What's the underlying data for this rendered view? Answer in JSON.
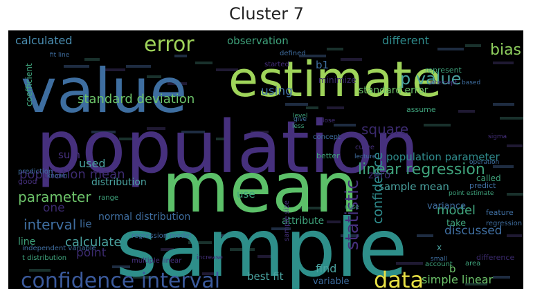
{
  "title": "Cluster 7",
  "colors": {
    "background": "#000000",
    "purple_dark": "#3b2a6e",
    "purple": "#46307d",
    "blue": "#3e6ea0",
    "teal": "#2e8f8a",
    "green": "#4cae6d",
    "lime": "#9fd45a",
    "yellow": "#e7e044"
  },
  "words": [
    {
      "text": "value",
      "color": "#3e6ea0"
    },
    {
      "text": "estimate",
      "color": "#9fd45a"
    },
    {
      "text": "population",
      "color": "#46307d"
    },
    {
      "text": "mean",
      "color": "#5cc069"
    },
    {
      "text": "sample",
      "color": "#2e8f8a"
    },
    {
      "text": "error",
      "color": "#9fd45a"
    },
    {
      "text": "confidence interval",
      "color": "#3b5a9c"
    },
    {
      "text": "data",
      "color": "#e7e044"
    },
    {
      "text": "standard deviation",
      "color": "#6cc36a"
    },
    {
      "text": "p value",
      "color": "#4aa3a0"
    },
    {
      "text": "linear regression",
      "color": "#3fa37c"
    },
    {
      "text": "population mean",
      "color": "#3b2a6e"
    },
    {
      "text": "population parameter",
      "color": "#2f8b8c"
    },
    {
      "text": "standard error",
      "color": "#6dc36a"
    },
    {
      "text": "observation",
      "color": "#3fa37c"
    },
    {
      "text": "calculated",
      "color": "#4a8db0"
    },
    {
      "text": "different",
      "color": "#2f8b8c"
    },
    {
      "text": "bias",
      "color": "#8fcf5e"
    },
    {
      "text": "using",
      "color": "#3f6ea0"
    },
    {
      "text": "square",
      "color": "#3b2a6e"
    },
    {
      "text": "parameter",
      "color": "#6dc36a"
    },
    {
      "text": "distribution",
      "color": "#4aa3a0"
    },
    {
      "text": "normal distribution",
      "color": "#3f6ea0"
    },
    {
      "text": "sample mean",
      "color": "#4aa3a0"
    },
    {
      "text": "model",
      "color": "#3fa37c"
    },
    {
      "text": "variance",
      "color": "#3f6ea0"
    },
    {
      "text": "interval",
      "color": "#3f6ea0"
    },
    {
      "text": "calculate",
      "color": "#4aa3a0"
    },
    {
      "text": "point",
      "color": "#3b2a6e"
    },
    {
      "text": "statistic",
      "color": "#46307d"
    },
    {
      "text": "confidence",
      "color": "#2f8b8c"
    },
    {
      "text": "discussed",
      "color": "#3f6ea0"
    },
    {
      "text": "attribute",
      "color": "#3fa37c"
    },
    {
      "text": "lie",
      "color": "#3f6ea0"
    },
    {
      "text": "one",
      "color": "#3b2a6e"
    },
    {
      "text": "line",
      "color": "#3fa37c"
    },
    {
      "text": "sum",
      "color": "#46307d"
    },
    {
      "text": "used",
      "color": "#4aa3a0"
    },
    {
      "text": "b1",
      "color": "#3f6ea0"
    },
    {
      "text": "find",
      "color": "#4aa3a0"
    },
    {
      "text": "variable",
      "color": "#3f6ea0"
    },
    {
      "text": "simple linear",
      "color": "#6dc36a"
    },
    {
      "text": "best fit",
      "color": "#4aa3a0"
    },
    {
      "text": "zero",
      "color": "#3b2a6e"
    },
    {
      "text": "b",
      "color": "#6dc36a"
    },
    {
      "text": "use",
      "color": "#3fa37c"
    },
    {
      "text": "called",
      "color": "#3fa37c"
    },
    {
      "text": "coefficient",
      "color": "#3fa37c"
    },
    {
      "text": "good",
      "color": "#46307d"
    },
    {
      "text": "prediction",
      "color": "#3f6ea0"
    },
    {
      "text": "regression model",
      "color": "#3f6ea0"
    },
    {
      "text": "take",
      "color": "#3fa37c"
    },
    {
      "text": "feature",
      "color": "#3f6ea0"
    },
    {
      "text": "minimize",
      "color": "#3b2a6e"
    },
    {
      "text": "represent",
      "color": "#3fa37c"
    },
    {
      "text": "predict",
      "color": "#3f6ea0"
    },
    {
      "text": "point estimate",
      "color": "#3fa37c"
    },
    {
      "text": "sample size",
      "color": "#46307d"
    },
    {
      "text": "independent variable",
      "color": "#3f6ea0"
    },
    {
      "text": "t distribution",
      "color": "#3fa37c"
    },
    {
      "text": "multiple linear",
      "color": "#46307d"
    },
    {
      "text": "difference",
      "color": "#3b2a6e"
    },
    {
      "text": "x",
      "color": "#4aa3a0"
    },
    {
      "text": "regression",
      "color": "#3f6ea0"
    },
    {
      "text": "range",
      "color": "#3fa37c"
    },
    {
      "text": "defined",
      "color": "#3f6ea0"
    },
    {
      "text": "started",
      "color": "#46307d"
    },
    {
      "text": "level",
      "color": "#3fa37c"
    },
    {
      "text": "better",
      "color": "#3fa37c"
    },
    {
      "text": "concept",
      "color": "#3f6ea0"
    },
    {
      "text": "curve",
      "color": "#46307d"
    },
    {
      "text": "assume",
      "color": "#3fa37c"
    },
    {
      "text": "lecture",
      "color": "#3f6ea0"
    },
    {
      "text": "intercept",
      "color": "#46307d"
    },
    {
      "text": "account",
      "color": "#3fa37c"
    },
    {
      "text": "area",
      "color": "#3fa37c"
    },
    {
      "text": "small",
      "color": "#3f6ea0"
    },
    {
      "text": "increase",
      "color": "#46307d"
    },
    {
      "text": "based",
      "color": "#3f6ea0"
    },
    {
      "text": "fit line",
      "color": "#3f6ea0"
    },
    {
      "text": "sigma",
      "color": "#46307d"
    },
    {
      "text": "operation",
      "color": "#3f6ea0"
    },
    {
      "text": "less",
      "color": "#3fa37c"
    },
    {
      "text": "give",
      "color": "#3f6ea0"
    },
    {
      "text": "close",
      "color": "#46307d"
    },
    {
      "text": "known",
      "color": "#3f6ea0"
    },
    {
      "text": "case",
      "color": "#3fa37c"
    }
  ]
}
